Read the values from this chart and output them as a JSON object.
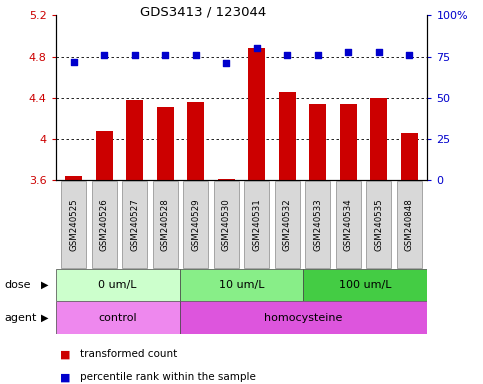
{
  "title": "GDS3413 / 123044",
  "samples": [
    "GSM240525",
    "GSM240526",
    "GSM240527",
    "GSM240528",
    "GSM240529",
    "GSM240530",
    "GSM240531",
    "GSM240532",
    "GSM240533",
    "GSM240534",
    "GSM240535",
    "GSM240848"
  ],
  "transformed_count": [
    3.64,
    4.08,
    4.38,
    4.31,
    4.36,
    3.61,
    4.88,
    4.46,
    4.34,
    4.34,
    4.4,
    4.06
  ],
  "percentile_rank": [
    72,
    76,
    76,
    76,
    76,
    71,
    80,
    76,
    76,
    78,
    78,
    76
  ],
  "bar_color": "#cc0000",
  "dot_color": "#0000cc",
  "ylim_left": [
    3.6,
    5.2
  ],
  "ylim_right": [
    0,
    100
  ],
  "yticks_left": [
    3.6,
    4.0,
    4.4,
    4.8,
    5.2
  ],
  "ytick_labels_left": [
    "3.6",
    "4",
    "4.4",
    "4.8",
    "5.2"
  ],
  "yticks_right": [
    0,
    25,
    50,
    75,
    100
  ],
  "ytick_labels_right": [
    "0",
    "25",
    "50",
    "75",
    "100%"
  ],
  "dose_groups": [
    {
      "label": "0 um/L",
      "start": 0,
      "end": 4,
      "color": "#ccffcc"
    },
    {
      "label": "10 um/L",
      "start": 4,
      "end": 8,
      "color": "#88ee88"
    },
    {
      "label": "100 um/L",
      "start": 8,
      "end": 12,
      "color": "#44cc44"
    }
  ],
  "agent_groups": [
    {
      "label": "control",
      "start": 0,
      "end": 4,
      "color": "#ee88ee"
    },
    {
      "label": "homocysteine",
      "start": 4,
      "end": 12,
      "color": "#dd55dd"
    }
  ],
  "dose_label": "dose",
  "agent_label": "agent",
  "legend_bar_label": "transformed count",
  "legend_dot_label": "percentile rank within the sample",
  "bg_color": "#ffffff",
  "plot_bg_color": "#ffffff",
  "tick_label_color_left": "#cc0000",
  "tick_label_color_right": "#0000cc",
  "grid_color": "#000000",
  "xticklabel_bg": "#d8d8d8"
}
